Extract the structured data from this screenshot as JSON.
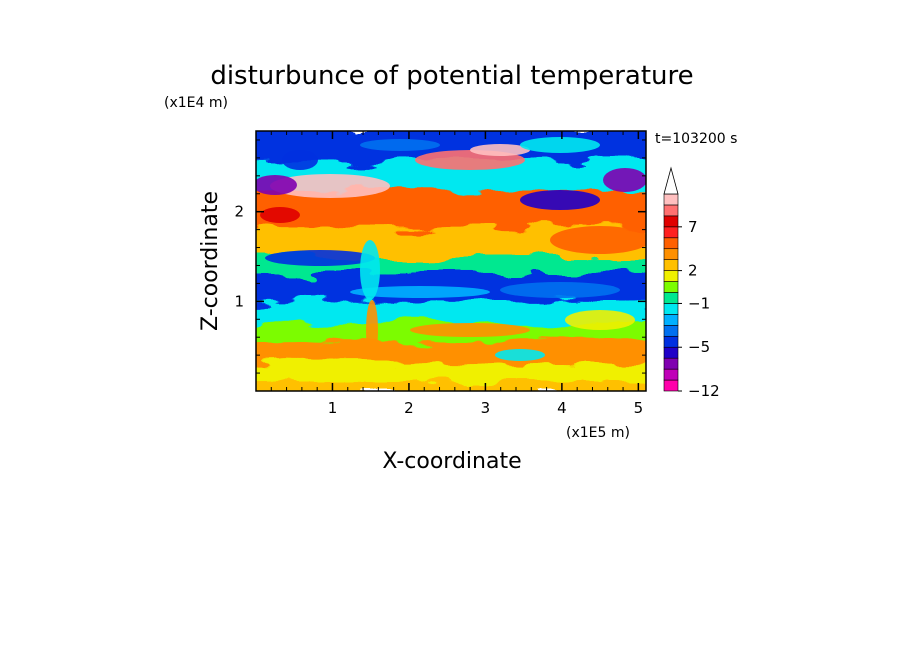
{
  "chart_data": {
    "type": "heatmap",
    "title": "disturbunce of potential temperature",
    "time_label": "t=103200 s",
    "xlabel": "X-coordinate",
    "ylabel": "Z-coordinate",
    "x_unit": "(x1E5 m)",
    "y_unit": "(x1E4 m)",
    "xlim": [
      0,
      5.1
    ],
    "ylim": [
      0,
      2.9
    ],
    "x_ticks": [
      {
        "value": 1,
        "label": "1"
      },
      {
        "value": 2,
        "label": "2"
      },
      {
        "value": 3,
        "label": "3"
      },
      {
        "value": 4,
        "label": "4"
      },
      {
        "value": 5,
        "label": "5"
      }
    ],
    "y_ticks": [
      {
        "value": 1,
        "label": "1"
      },
      {
        "value": 2,
        "label": "2"
      }
    ],
    "colorbar": {
      "levels": [
        -12,
        -10,
        -8,
        -6.5,
        -5,
        -4,
        -3,
        -2,
        -1,
        0,
        1,
        2,
        3,
        4.5,
        6,
        7,
        8.5,
        10,
        12
      ],
      "colors": [
        "#ff00aa",
        "#c000b8",
        "#8000b0",
        "#2000c8",
        "#0030e0",
        "#0070f0",
        "#00b0ff",
        "#00e8f0",
        "#00e890",
        "#7cfc00",
        "#f0f000",
        "#ffc000",
        "#ff9000",
        "#ff6000",
        "#ff2020",
        "#e00000",
        "#ff7070",
        "#ffc0c0"
      ],
      "labels": [
        {
          "value": -12,
          "label": "−12"
        },
        {
          "value": -5,
          "label": "−5"
        },
        {
          "value": -1,
          "label": "−1"
        },
        {
          "value": 2,
          "label": "2"
        },
        {
          "value": 7,
          "label": "7"
        }
      ],
      "extend": "max"
    },
    "layers": [
      {
        "z": [
          0.0,
          0.15
        ],
        "value": 2.5,
        "note": "yellow"
      },
      {
        "z": [
          0.15,
          0.35
        ],
        "value": 1.5,
        "note": "yellow-green"
      },
      {
        "z": [
          0.35,
          0.6
        ],
        "value": 3.5,
        "note": "orange"
      },
      {
        "z": [
          0.6,
          0.8
        ],
        "value": 0.5,
        "note": "green"
      },
      {
        "z": [
          0.8,
          1.05
        ],
        "value": -1.5,
        "note": "cyan"
      },
      {
        "z": [
          1.05,
          1.35
        ],
        "value": -4.5,
        "note": "blue"
      },
      {
        "z": [
          1.35,
          1.55
        ],
        "value": -0.5,
        "note": "cyan-green"
      },
      {
        "z": [
          1.55,
          1.85
        ],
        "value": 2.5,
        "note": "yellow-orange"
      },
      {
        "z": [
          1.85,
          2.3
        ],
        "value": 5.0,
        "note": "orange-red"
      },
      {
        "z": [
          2.3,
          2.6
        ],
        "value": -1.5,
        "note": "cyan"
      },
      {
        "z": [
          2.6,
          2.9
        ],
        "value": -4.5,
        "note": "blue"
      }
    ]
  }
}
